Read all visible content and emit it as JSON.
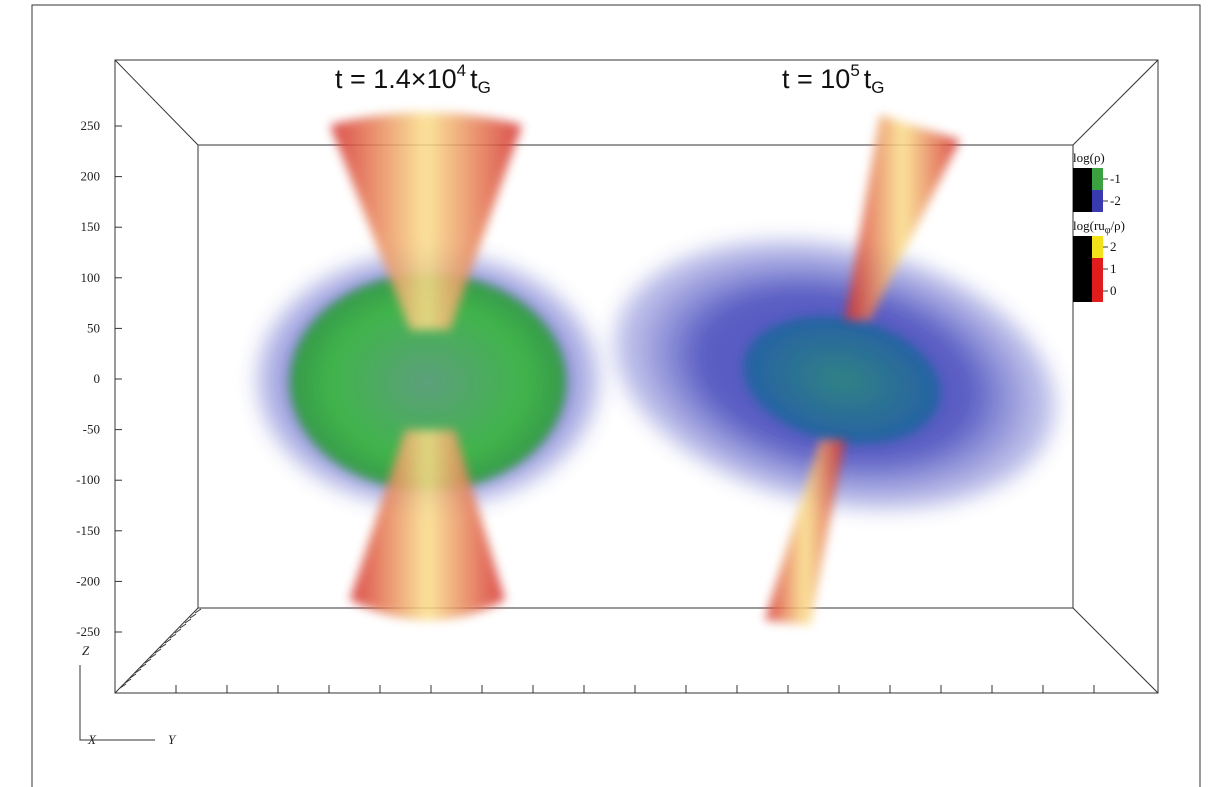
{
  "panels": [
    {
      "title": "t = 1.4×10",
      "exponent": "4",
      "unit": "t",
      "unit_subscript": "G"
    },
    {
      "title": "t = 10",
      "exponent": "5",
      "unit": "t",
      "unit_subscript": "G"
    }
  ],
  "z_ticks": [
    250,
    200,
    150,
    100,
    50,
    0,
    -50,
    -100,
    -150,
    -200,
    -250
  ],
  "axes": {
    "z": "Z",
    "x": "X",
    "y": "Y"
  },
  "legend": [
    {
      "label": "log(ρ)",
      "ticks": [
        -1,
        -2
      ]
    },
    {
      "label": "log(ru",
      "label_subscript": "φ",
      "label_tail": "/ρ)",
      "ticks": [
        2,
        1,
        0
      ]
    }
  ]
}
